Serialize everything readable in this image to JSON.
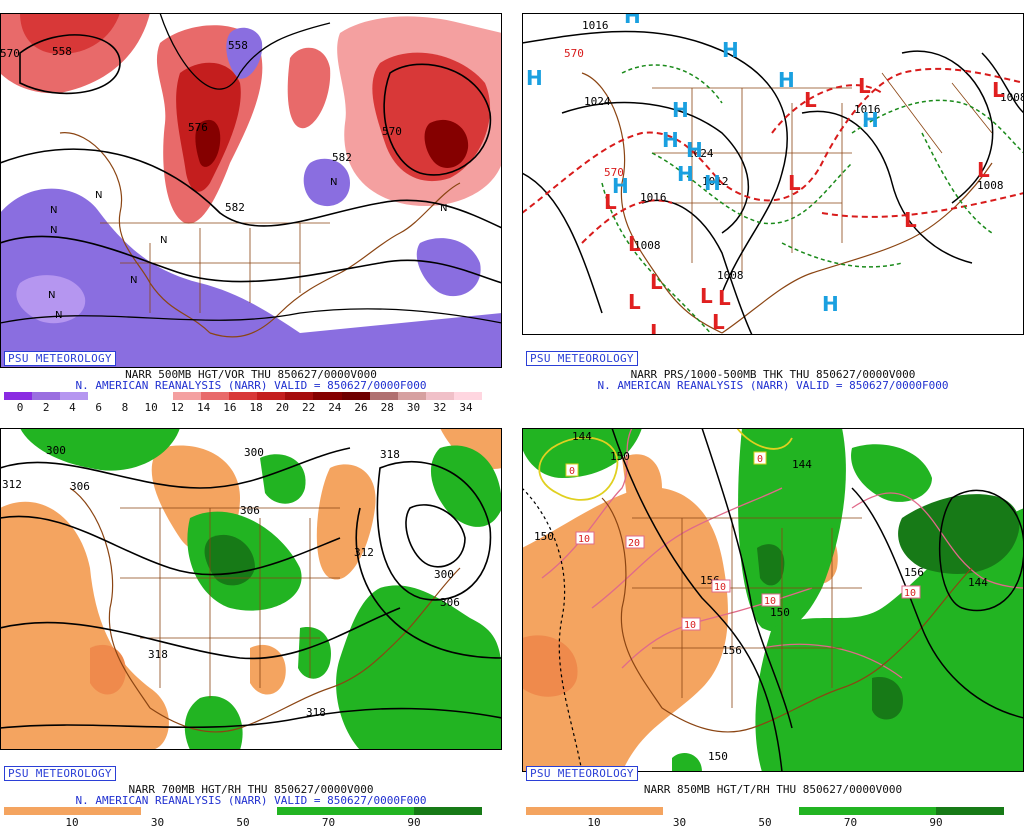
{
  "panels": [
    {
      "id": "p1",
      "badge": "PSU METEOROLOGY",
      "title_line1": "NARR 500MB HGT/VOR THU 850627/0000V000",
      "title_line2": "N. AMERICAN REANALYSIS (NARR) VALID = 850627/0000F000",
      "scale_labels": [
        "0",
        "2",
        "4",
        "6",
        "8",
        "10",
        "12",
        "14",
        "16",
        "18",
        "20",
        "22",
        "24",
        "26",
        "28",
        "30",
        "32",
        "34"
      ],
      "scale_colors": [
        "#8a2be2",
        "#9a6ee0",
        "#b596f0",
        "#ffffff",
        "#ffffff",
        "#ffffff",
        "#f4a0a0",
        "#e86a6a",
        "#d83838",
        "#c41e1e",
        "#a50c0c",
        "#850000",
        "#6e0000",
        "#b07070",
        "#d6a0a0",
        "#f0c0c8",
        "#ffd6e0"
      ],
      "contour_labels": [
        "558",
        "558",
        "570",
        "576",
        "582",
        "582",
        "570"
      ],
      "markers": [
        "N",
        "N",
        "N",
        "N",
        "N",
        "N",
        "N",
        "N",
        "N"
      ]
    },
    {
      "id": "p2",
      "badge": "PSU METEOROLOGY",
      "title_line1": "NARR PRS/1000-500MB THK THU 850627/0000V000",
      "title_line2": "N. AMERICAN REANALYSIS (NARR) VALID = 850627/0000F000",
      "contour_labels": [
        "1016",
        "1024",
        "1024",
        "1012",
        "1016",
        "1008",
        "1008",
        "1016",
        "1008",
        "1008",
        "570",
        "570"
      ],
      "highs": [
        "H",
        "H",
        "H",
        "H",
        "H",
        "H",
        "H",
        "H",
        "H",
        "H",
        "H",
        "H"
      ],
      "lows": [
        "L",
        "L",
        "L",
        "L",
        "L",
        "L",
        "L",
        "L",
        "L",
        "L",
        "L",
        "L",
        "L",
        "L"
      ]
    },
    {
      "id": "p3",
      "badge": "PSU METEOROLOGY",
      "title_line1": "NARR 700MB HGT/RH THU 850627/0000V000",
      "title_line2": "N. AMERICAN REANALYSIS (NARR) VALID = 850627/0000F000",
      "scale_labels": [
        "10",
        "30",
        "50",
        "70",
        "90"
      ],
      "scale_colors": [
        "#f4a460",
        "#f4a460",
        "#ffffff",
        "#ffffff",
        "#22b422",
        "#22b422",
        "#177a17"
      ],
      "contour_labels": [
        "300",
        "312",
        "306",
        "300",
        "306",
        "318",
        "312",
        "300",
        "306",
        "318",
        "318"
      ]
    },
    {
      "id": "p4",
      "badge": "PSU METEOROLOGY",
      "title_line1": "NARR 850MB HGT/T/RH THU 850627/0000V000",
      "title_line2": "",
      "scale_labels": [
        "10",
        "30",
        "50",
        "70",
        "90"
      ],
      "scale_colors": [
        "#f4a460",
        "#f4a460",
        "#ffffff",
        "#ffffff",
        "#22b422",
        "#22b422",
        "#177a17"
      ],
      "contour_labels": [
        "144",
        "144",
        "150",
        "150",
        "156",
        "150",
        "156",
        "144",
        "156",
        "150"
      ],
      "temp_labels": [
        "0",
        "0",
        "10",
        "20",
        "10",
        "10",
        "10",
        "10"
      ]
    }
  ]
}
